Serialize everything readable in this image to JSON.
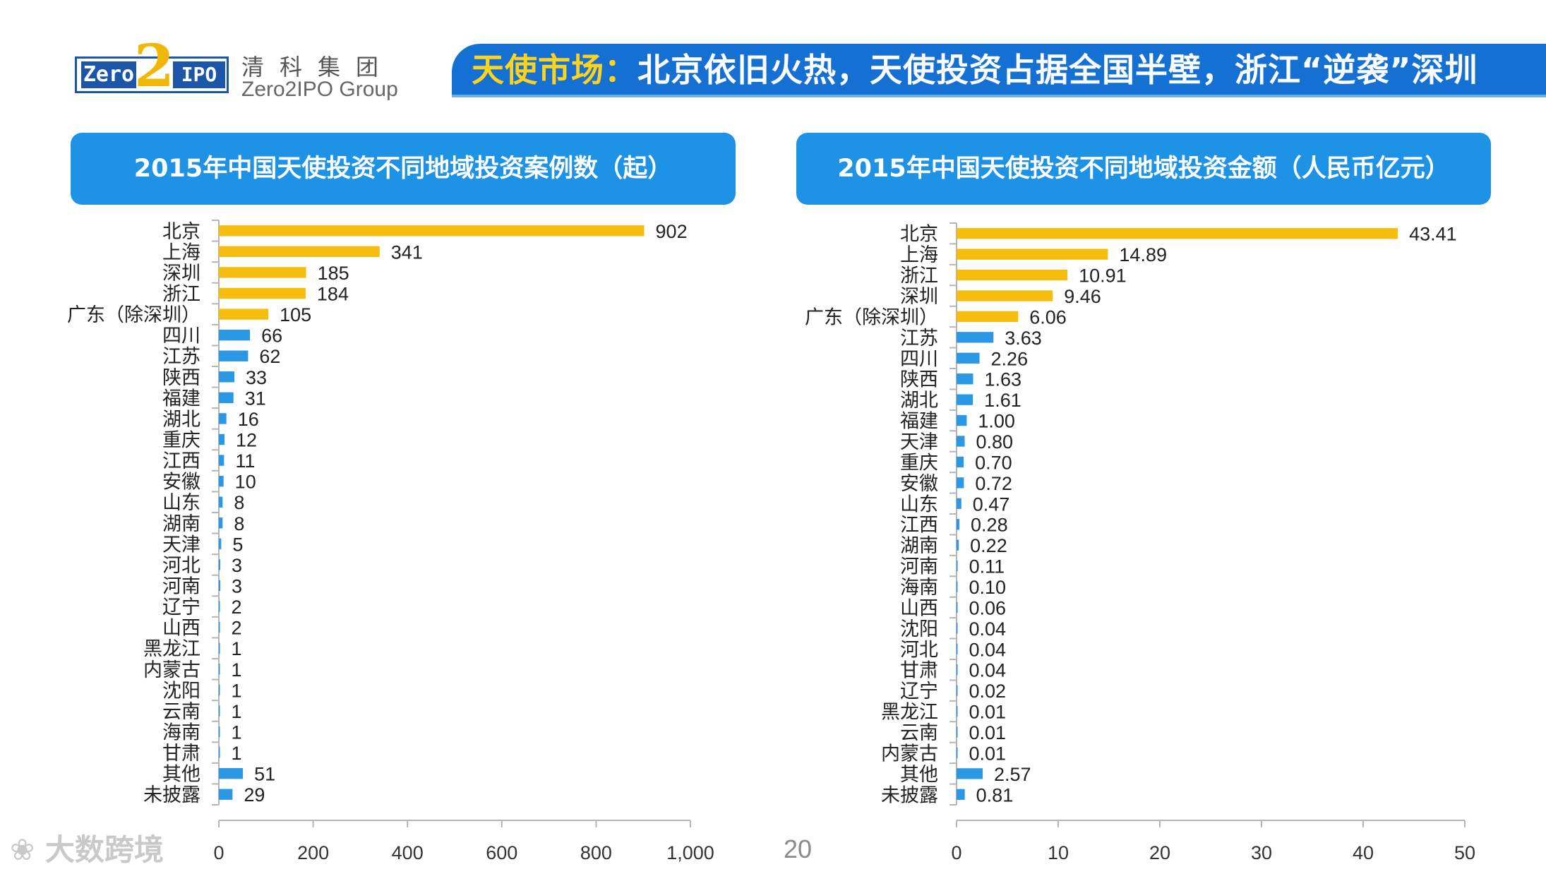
{
  "logo": {
    "zero": "Zero",
    "two": "2",
    "ipo": "IPO",
    "cn": "清科集团",
    "en": "Zero2IPO Group"
  },
  "headline": {
    "highlight": "天使市场：",
    "text": "北京依旧火热，天使投资占据全国半壁，浙江“逆袭”深圳"
  },
  "colors": {
    "top5": "#f6bd0e",
    "others": "#2b98e6",
    "header_bg": "#1e93e6",
    "headline_bg": "#1570d4",
    "axis": "#b5b5b5"
  },
  "chart_data": [
    {
      "type": "bar",
      "orientation": "horizontal",
      "title": "2015年中国天使投资不同地域投资案例数（起）",
      "categories": [
        "北京",
        "上海",
        "深圳",
        "浙江",
        "广东（除深圳）",
        "四川",
        "江苏",
        "陕西",
        "福建",
        "湖北",
        "重庆",
        "江西",
        "安徽",
        "山东",
        "湖南",
        "天津",
        "河北",
        "河南",
        "辽宁",
        "山西",
        "黑龙江",
        "内蒙古",
        "沈阳",
        "云南",
        "海南",
        "甘肃",
        "其他",
        "未披露"
      ],
      "values": [
        902,
        341,
        185,
        184,
        105,
        66,
        62,
        33,
        31,
        16,
        12,
        11,
        10,
        8,
        8,
        5,
        3,
        3,
        2,
        2,
        1,
        1,
        1,
        1,
        1,
        1,
        51,
        29
      ],
      "value_labels": [
        "902",
        "341",
        "185",
        "184",
        "105",
        "66",
        "62",
        "33",
        "31",
        "16",
        "12",
        "11",
        "10",
        "8",
        "8",
        "5",
        "3",
        "3",
        "2",
        "2",
        "1",
        "1",
        "1",
        "1",
        "1",
        "1",
        "51",
        "29"
      ],
      "highlight_count": 5,
      "xlim": [
        0,
        1000
      ],
      "xticks": [
        0,
        200,
        400,
        600,
        800,
        1000
      ],
      "xtick_labels": [
        "0",
        "200",
        "400",
        "600",
        "800",
        "1,000"
      ]
    },
    {
      "type": "bar",
      "orientation": "horizontal",
      "title": "2015年中国天使投资不同地域投资金额（人民币亿元）",
      "categories": [
        "北京",
        "上海",
        "浙江",
        "深圳",
        "广东（除深圳）",
        "江苏",
        "四川",
        "陕西",
        "湖北",
        "福建",
        "天津",
        "重庆",
        "安徽",
        "山东",
        "江西",
        "湖南",
        "河南",
        "海南",
        "山西",
        "沈阳",
        "河北",
        "甘肃",
        "辽宁",
        "黑龙江",
        "云南",
        "内蒙古",
        "其他",
        "未披露"
      ],
      "values": [
        43.41,
        14.89,
        10.91,
        9.46,
        6.06,
        3.63,
        2.26,
        1.63,
        1.61,
        1.0,
        0.8,
        0.7,
        0.72,
        0.47,
        0.28,
        0.22,
        0.11,
        0.1,
        0.06,
        0.04,
        0.04,
        0.04,
        0.02,
        0.01,
        0.01,
        0.01,
        2.57,
        0.81
      ],
      "value_labels": [
        "43.41",
        "14.89",
        "10.91",
        "9.46",
        "6.06",
        "3.63",
        "2.26",
        "1.63",
        "1.61",
        "1.00",
        "0.80",
        "0.70",
        "0.72",
        "0.47",
        "0.28",
        "0.22",
        "0.11",
        "0.10",
        "0.06",
        "0.04",
        "0.04",
        "0.04",
        "0.02",
        "0.01",
        "0.01",
        "0.01",
        "2.57",
        "0.81"
      ],
      "highlight_count": 5,
      "xlim": [
        0,
        50
      ],
      "xticks": [
        0,
        10,
        20,
        30,
        40,
        50
      ],
      "xtick_labels": [
        "0",
        "10",
        "20",
        "30",
        "40",
        "50"
      ]
    }
  ],
  "footer": {
    "watermark": "大数跨境",
    "page_number": "20"
  }
}
